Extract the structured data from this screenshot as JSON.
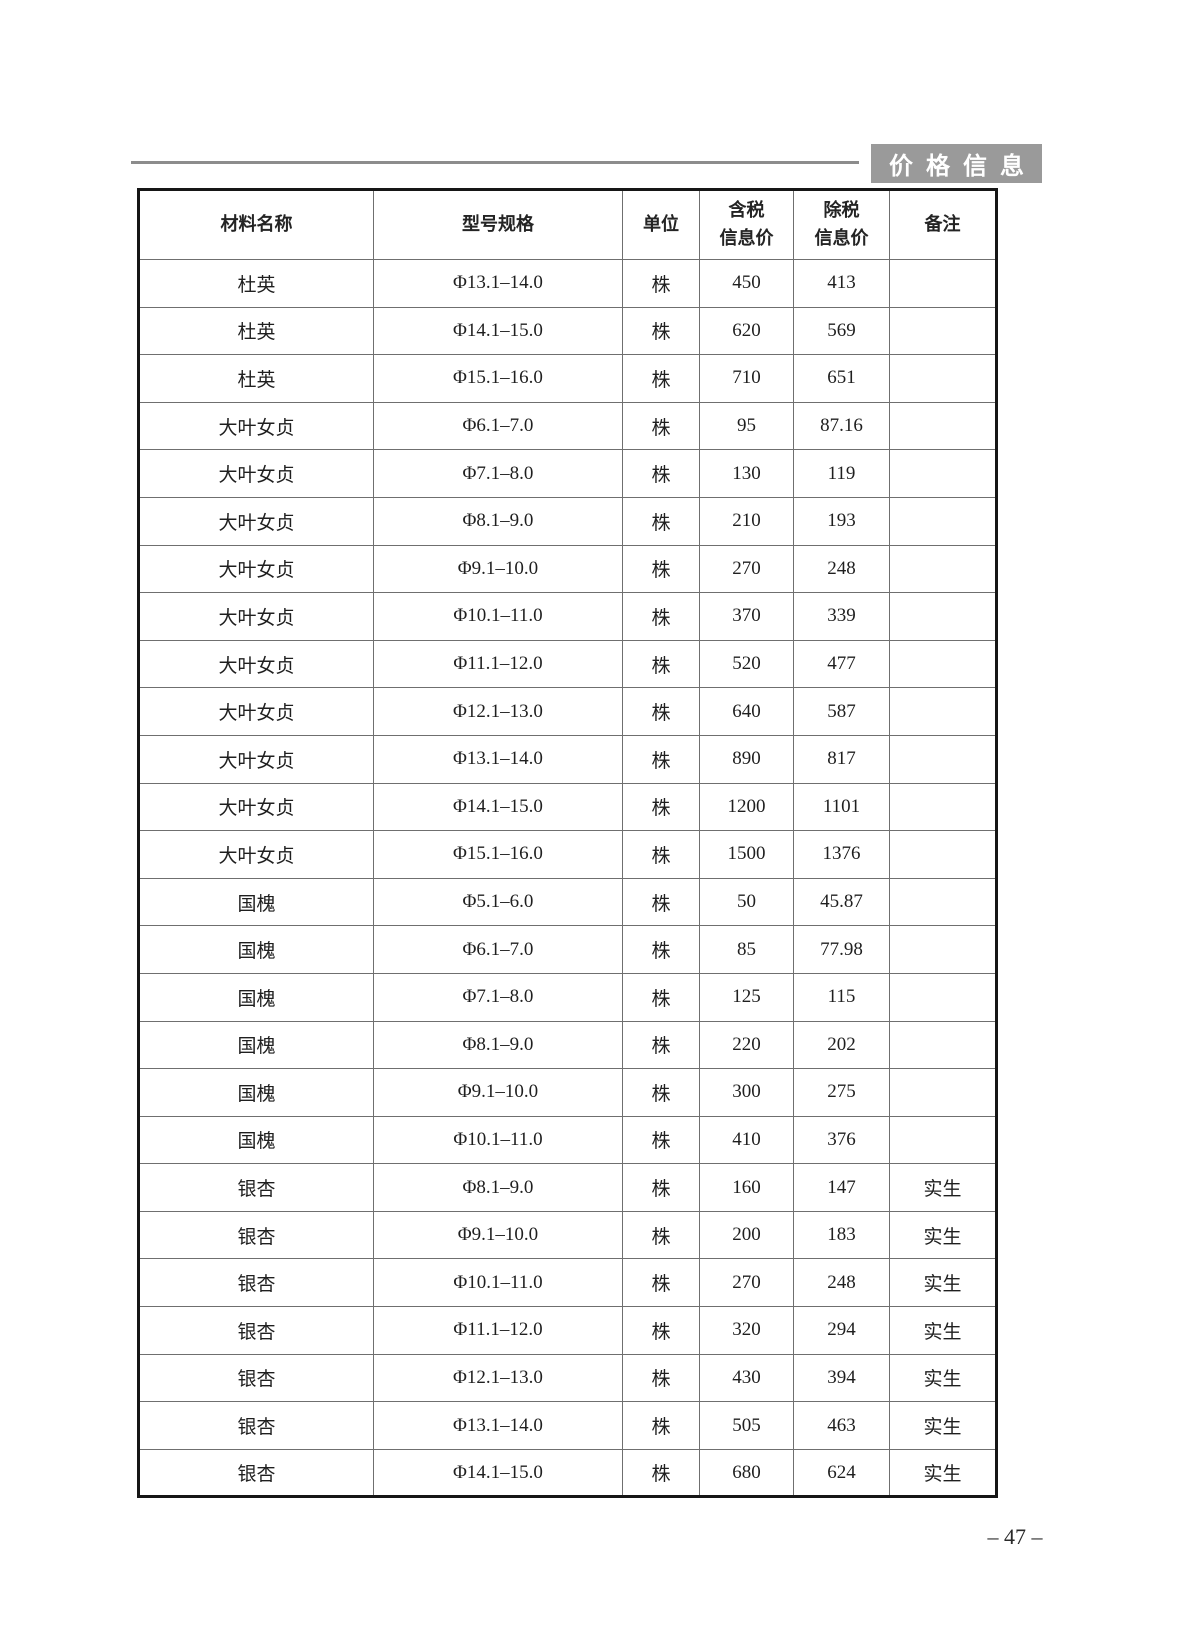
{
  "page": {
    "header_badge": "价格信息",
    "footer_page_number": "– 47 –"
  },
  "colors": {
    "badge_background": "#9a9a9a",
    "badge_text": "#ffffff",
    "table_outer_border": "#161616",
    "table_grid": "#6f6f6f",
    "body_text": "#1f1f1f",
    "rule_line": "#8c8c8c"
  },
  "table": {
    "header": [
      {
        "lines": [
          "材料名称"
        ]
      },
      {
        "lines": [
          "型号规格"
        ]
      },
      {
        "lines": [
          "单位"
        ]
      },
      {
        "lines": [
          "含税",
          "信息价"
        ]
      },
      {
        "lines": [
          "除税",
          "信息价"
        ]
      },
      {
        "lines": [
          "备注"
        ]
      }
    ],
    "row_keys": [
      "name",
      "spec",
      "unit",
      "price_with_tax",
      "price_without_tax",
      "note"
    ],
    "rows": [
      {
        "name": "杜英",
        "spec": "Φ13.1–14.0",
        "unit": "株",
        "price_with_tax": "450",
        "price_without_tax": "413",
        "note": ""
      },
      {
        "name": "杜英",
        "spec": "Φ14.1–15.0",
        "unit": "株",
        "price_with_tax": "620",
        "price_without_tax": "569",
        "note": ""
      },
      {
        "name": "杜英",
        "spec": "Φ15.1–16.0",
        "unit": "株",
        "price_with_tax": "710",
        "price_without_tax": "651",
        "note": ""
      },
      {
        "name": "大叶女贞",
        "spec": "Φ6.1–7.0",
        "unit": "株",
        "price_with_tax": "95",
        "price_without_tax": "87.16",
        "note": ""
      },
      {
        "name": "大叶女贞",
        "spec": "Φ7.1–8.0",
        "unit": "株",
        "price_with_tax": "130",
        "price_without_tax": "119",
        "note": ""
      },
      {
        "name": "大叶女贞",
        "spec": "Φ8.1–9.0",
        "unit": "株",
        "price_with_tax": "210",
        "price_without_tax": "193",
        "note": ""
      },
      {
        "name": "大叶女贞",
        "spec": "Φ9.1–10.0",
        "unit": "株",
        "price_with_tax": "270",
        "price_without_tax": "248",
        "note": ""
      },
      {
        "name": "大叶女贞",
        "spec": "Φ10.1–11.0",
        "unit": "株",
        "price_with_tax": "370",
        "price_without_tax": "339",
        "note": ""
      },
      {
        "name": "大叶女贞",
        "spec": "Φ11.1–12.0",
        "unit": "株",
        "price_with_tax": "520",
        "price_without_tax": "477",
        "note": ""
      },
      {
        "name": "大叶女贞",
        "spec": "Φ12.1–13.0",
        "unit": "株",
        "price_with_tax": "640",
        "price_without_tax": "587",
        "note": ""
      },
      {
        "name": "大叶女贞",
        "spec": "Φ13.1–14.0",
        "unit": "株",
        "price_with_tax": "890",
        "price_without_tax": "817",
        "note": ""
      },
      {
        "name": "大叶女贞",
        "spec": "Φ14.1–15.0",
        "unit": "株",
        "price_with_tax": "1200",
        "price_without_tax": "1101",
        "note": ""
      },
      {
        "name": "大叶女贞",
        "spec": "Φ15.1–16.0",
        "unit": "株",
        "price_with_tax": "1500",
        "price_without_tax": "1376",
        "note": ""
      },
      {
        "name": "国槐",
        "spec": "Φ5.1–6.0",
        "unit": "株",
        "price_with_tax": "50",
        "price_without_tax": "45.87",
        "note": ""
      },
      {
        "name": "国槐",
        "spec": "Φ6.1–7.0",
        "unit": "株",
        "price_with_tax": "85",
        "price_without_tax": "77.98",
        "note": ""
      },
      {
        "name": "国槐",
        "spec": "Φ7.1–8.0",
        "unit": "株",
        "price_with_tax": "125",
        "price_without_tax": "115",
        "note": ""
      },
      {
        "name": "国槐",
        "spec": "Φ8.1–9.0",
        "unit": "株",
        "price_with_tax": "220",
        "price_without_tax": "202",
        "note": ""
      },
      {
        "name": "国槐",
        "spec": "Φ9.1–10.0",
        "unit": "株",
        "price_with_tax": "300",
        "price_without_tax": "275",
        "note": ""
      },
      {
        "name": "国槐",
        "spec": "Φ10.1–11.0",
        "unit": "株",
        "price_with_tax": "410",
        "price_without_tax": "376",
        "note": ""
      },
      {
        "name": "银杏",
        "spec": "Φ8.1–9.0",
        "unit": "株",
        "price_with_tax": "160",
        "price_without_tax": "147",
        "note": "实生"
      },
      {
        "name": "银杏",
        "spec": "Φ9.1–10.0",
        "unit": "株",
        "price_with_tax": "200",
        "price_without_tax": "183",
        "note": "实生"
      },
      {
        "name": "银杏",
        "spec": "Φ10.1–11.0",
        "unit": "株",
        "price_with_tax": "270",
        "price_without_tax": "248",
        "note": "实生"
      },
      {
        "name": "银杏",
        "spec": "Φ11.1–12.0",
        "unit": "株",
        "price_with_tax": "320",
        "price_without_tax": "294",
        "note": "实生"
      },
      {
        "name": "银杏",
        "spec": "Φ12.1–13.0",
        "unit": "株",
        "price_with_tax": "430",
        "price_without_tax": "394",
        "note": "实生"
      },
      {
        "name": "银杏",
        "spec": "Φ13.1–14.0",
        "unit": "株",
        "price_with_tax": "505",
        "price_without_tax": "463",
        "note": "实生"
      },
      {
        "name": "银杏",
        "spec": "Φ14.1–15.0",
        "unit": "株",
        "price_with_tax": "680",
        "price_without_tax": "624",
        "note": "实生"
      }
    ]
  }
}
